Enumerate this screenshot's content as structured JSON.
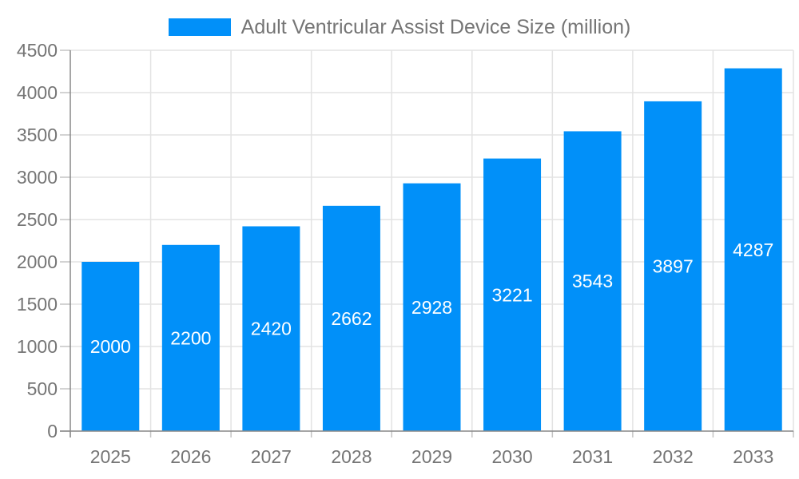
{
  "legend": {
    "label": "Adult Ventricular Assist Device Size (million)"
  },
  "colors": {
    "bar": "#0190f9",
    "axis_line": "#888888",
    "grid_line": "#e3e3e3",
    "tick_mark": "#c4c4c4",
    "axis_label": "#757575",
    "bar_label": "#ffffff",
    "background": "#ffffff"
  },
  "chart_data": {
    "type": "bar",
    "title": "Adult Ventricular Assist Device Size (million)",
    "categories": [
      "2025",
      "2026",
      "2027",
      "2028",
      "2029",
      "2030",
      "2031",
      "2032",
      "2033"
    ],
    "values": [
      2000,
      2200,
      2420,
      2662,
      2928,
      3221,
      3543,
      3897,
      4287
    ],
    "xlabel": "",
    "ylabel": "",
    "ylim": [
      0,
      4500
    ],
    "ytick_step": 500,
    "ytick_labels": [
      "0",
      "500",
      "1000",
      "1500",
      "2000",
      "2500",
      "3000",
      "3500",
      "4000",
      "4500"
    ],
    "grid": true,
    "legend_position": "top-center",
    "bar_value_labels": "inside-center"
  }
}
